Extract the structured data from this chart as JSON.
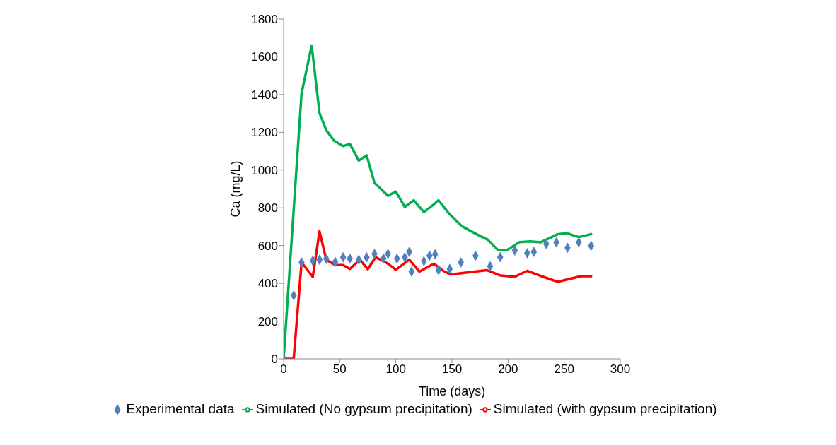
{
  "chart_data": {
    "type": "line",
    "xlabel": "Time (days)",
    "ylabel": "Ca (mg/L)",
    "xlim": [
      0,
      300
    ],
    "xticks": [
      0,
      50,
      100,
      150,
      200,
      250,
      300
    ],
    "ylim": [
      0,
      1800
    ],
    "yticks": [
      0,
      200,
      400,
      600,
      800,
      1000,
      1200,
      1400,
      1600,
      1800
    ],
    "grid": false,
    "legend": "bottom",
    "series": [
      {
        "name": "Experimental data",
        "type": "scatter",
        "marker": "diamond",
        "color": "#4f81bd",
        "x": [
          0,
          9,
          16,
          26,
          32,
          38,
          46,
          53,
          59,
          67,
          74,
          81,
          89,
          93,
          101,
          108,
          112,
          114,
          125,
          130,
          135,
          138,
          148,
          158,
          171,
          184,
          193,
          206,
          217,
          223,
          234,
          243,
          253,
          263,
          274
        ],
        "values": [
          0,
          336,
          511,
          520,
          525,
          530,
          514,
          538,
          531,
          525,
          538,
          556,
          531,
          556,
          531,
          538,
          567,
          462,
          518,
          546,
          554,
          470,
          476,
          511,
          546,
          490,
          539,
          574,
          560,
          567,
          609,
          617,
          588,
          617,
          599
        ]
      },
      {
        "name": "Simulated (with gypsum precipitation)",
        "color": "#ff0000",
        "x": [
          0,
          9,
          16,
          26,
          32,
          38,
          46,
          53,
          59,
          68,
          75,
          82,
          93,
          100,
          112,
          121,
          134,
          143,
          149,
          181,
          193,
          206,
          217,
          231,
          244,
          265,
          275
        ],
        "values": [
          0,
          0,
          511,
          434,
          676,
          525,
          497,
          497,
          476,
          525,
          475,
          539,
          504,
          472,
          525,
          462,
          504,
          463,
          447,
          470,
          442,
          435,
          466,
          435,
          408,
          438,
          438
        ]
      },
      {
        "name": "Simulated (No gypsum precipitation)",
        "color": "#00b050",
        "x": [
          0,
          16,
          25,
          32,
          38,
          45,
          53,
          59,
          67,
          74,
          81,
          93,
          100,
          108,
          116,
          125,
          133,
          138,
          147,
          159,
          172,
          182,
          191,
          199,
          210,
          220,
          229,
          244,
          252,
          263,
          275
        ],
        "values": [
          0,
          1407,
          1660,
          1302,
          1211,
          1155,
          1127,
          1139,
          1050,
          1078,
          932,
          864,
          886,
          805,
          840,
          777,
          814,
          840,
          772,
          702,
          660,
          631,
          576,
          576,
          618,
          622,
          617,
          660,
          666,
          645,
          662
        ]
      }
    ]
  }
}
